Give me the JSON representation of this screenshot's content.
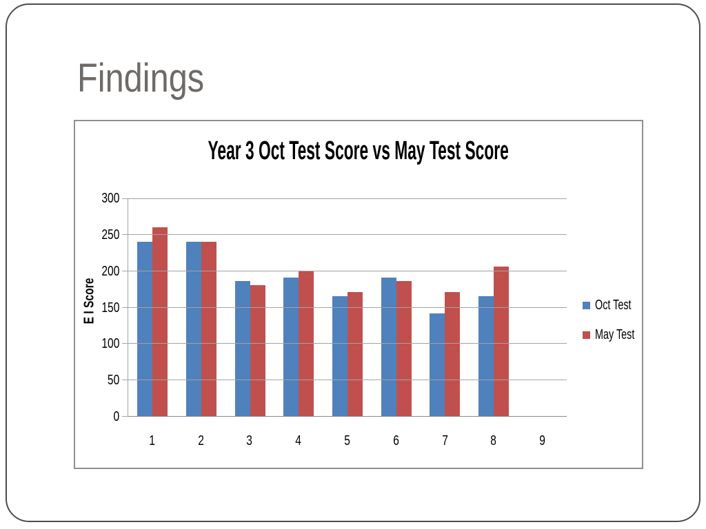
{
  "slide": {
    "title": "Findings"
  },
  "chart_data": {
    "type": "bar",
    "title": "Year 3 Oct Test Score vs May Test Score",
    "categories": [
      "1",
      "2",
      "3",
      "4",
      "5",
      "6",
      "7",
      "8",
      "9"
    ],
    "series": [
      {
        "name": "Oct Test",
        "color": "#4F81BD",
        "values": [
          240,
          240,
          186,
          191,
          166,
          191,
          142,
          166,
          null
        ]
      },
      {
        "name": "May Test",
        "color": "#C0504D",
        "values": [
          260,
          240,
          181,
          201,
          171,
          186,
          171,
          206,
          null
        ]
      }
    ],
    "xlabel": "",
    "ylabel": "E I Score",
    "ylim": [
      0,
      300
    ],
    "yticks": [
      0,
      50,
      100,
      150,
      200,
      250,
      300
    ],
    "grid": true,
    "legend_position": "right"
  },
  "colors": {
    "background": "#ffffff",
    "slide_border": "#4c4c4c",
    "slide_title_text": "#6e6a67",
    "chart_border": "#8f8f8f",
    "gridline": "#a3a3a3",
    "axis_line": "#8a8a8a",
    "chart_text": "#000000"
  }
}
